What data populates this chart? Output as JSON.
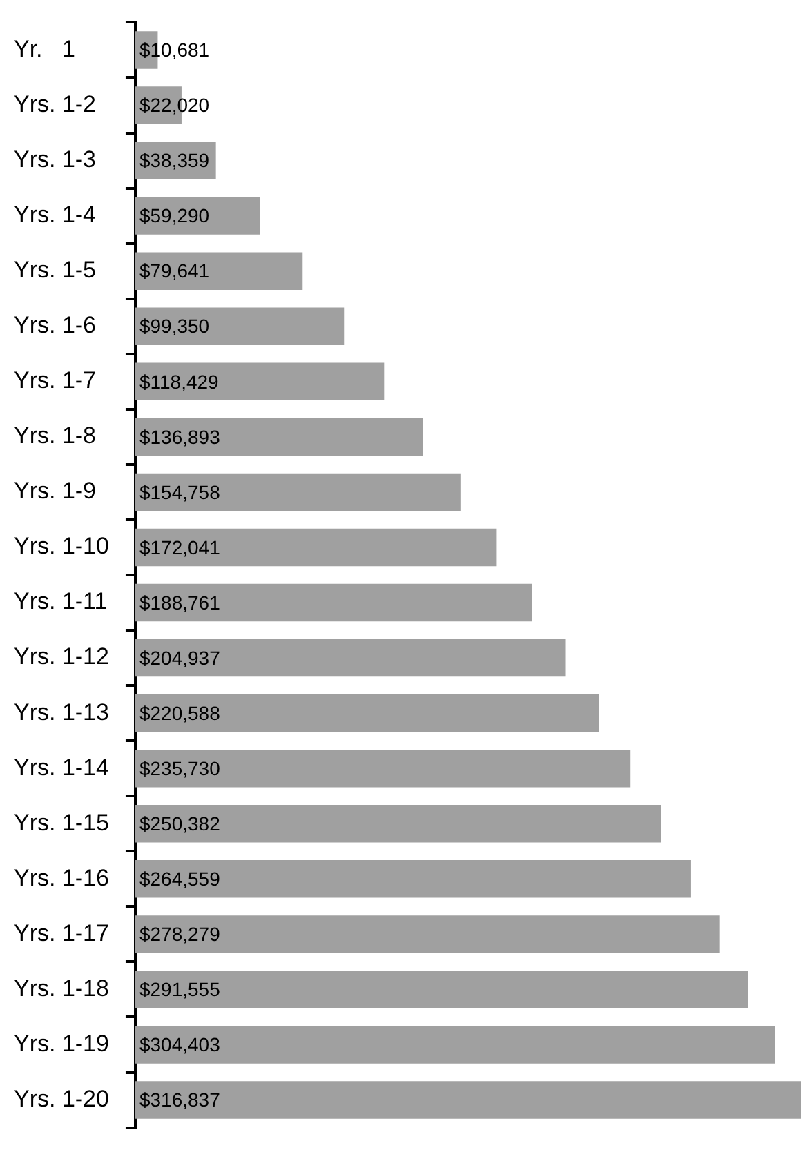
{
  "chart_data": {
    "type": "bar",
    "orientation": "horizontal",
    "categories": [
      "Yr.   1",
      "Yrs. 1-2",
      "Yrs. 1-3",
      "Yrs. 1-4",
      "Yrs. 1-5",
      "Yrs. 1-6",
      "Yrs. 1-7",
      "Yrs. 1-8",
      "Yrs. 1-9",
      "Yrs. 1-10",
      "Yrs. 1-11",
      "Yrs. 1-12",
      "Yrs. 1-13",
      "Yrs. 1-14",
      "Yrs. 1-15",
      "Yrs. 1-16",
      "Yrs. 1-17",
      "Yrs. 1-18",
      "Yrs. 1-19",
      "Yrs. 1-20"
    ],
    "values": [
      10681,
      22020,
      38359,
      59290,
      79641,
      99350,
      118429,
      136893,
      154758,
      172041,
      188761,
      204937,
      220588,
      235730,
      250382,
      264559,
      278279,
      291555,
      304403,
      316837
    ],
    "value_labels": [
      "$10,681",
      "$22,020",
      "$38,359",
      "$59,290",
      "$79,641",
      "$99,350",
      "$118,429",
      "$136,893",
      "$154,758",
      "$172,041",
      "$188,761",
      "$204,937",
      "$220,588",
      "$235,730",
      "$250,382",
      "$264,559",
      "$278,279",
      "$291,555",
      "$304,403",
      "$316,837"
    ],
    "color": "#a0a0a0",
    "legend": false
  }
}
